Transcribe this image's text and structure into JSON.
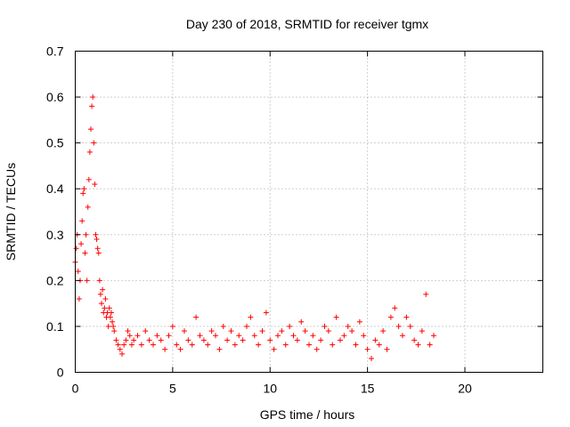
{
  "chart_data": {
    "type": "scatter",
    "title": "Day 230 of 2018, SRMTID for receiver tgmx",
    "xlabel": "GPS time / hours",
    "ylabel": "SRMTID / TECUs",
    "xlim": [
      0,
      24
    ],
    "ylim": [
      0,
      0.7
    ],
    "xticks": [
      0,
      5,
      10,
      15,
      20
    ],
    "yticks": [
      0,
      0.1,
      0.2,
      0.3,
      0.4,
      0.5,
      0.6,
      0.7
    ],
    "xtick_labels": [
      "0",
      "5",
      "10",
      "15",
      "20"
    ],
    "ytick_labels": [
      "0",
      "0.1",
      "0.2",
      "0.3",
      "0.4",
      "0.5",
      "0.6",
      "0.7"
    ],
    "grid": true,
    "marker": "+",
    "color": "#ff0000",
    "series": [
      {
        "name": "SRMTID",
        "x": [
          0.0,
          0.05,
          0.1,
          0.15,
          0.2,
          0.25,
          0.3,
          0.35,
          0.4,
          0.45,
          0.5,
          0.55,
          0.6,
          0.65,
          0.7,
          0.75,
          0.8,
          0.85,
          0.9,
          0.95,
          1.0,
          1.05,
          1.1,
          1.15,
          1.2,
          1.25,
          1.3,
          1.35,
          1.4,
          1.45,
          1.5,
          1.55,
          1.6,
          1.65,
          1.7,
          1.75,
          1.8,
          1.85,
          1.9,
          1.95,
          2.0,
          2.1,
          2.2,
          2.3,
          2.4,
          2.5,
          2.6,
          2.7,
          2.8,
          2.9,
          3.0,
          3.2,
          3.4,
          3.6,
          3.8,
          4.0,
          4.2,
          4.4,
          4.6,
          4.8,
          5.0,
          5.2,
          5.4,
          5.6,
          5.8,
          6.0,
          6.2,
          6.4,
          6.6,
          6.8,
          7.0,
          7.2,
          7.4,
          7.6,
          7.8,
          8.0,
          8.2,
          8.4,
          8.6,
          8.8,
          9.0,
          9.2,
          9.4,
          9.6,
          9.8,
          10.0,
          10.2,
          10.4,
          10.6,
          10.8,
          11.0,
          11.2,
          11.4,
          11.6,
          11.8,
          12.0,
          12.2,
          12.4,
          12.6,
          12.8,
          13.0,
          13.2,
          13.4,
          13.6,
          13.8,
          14.0,
          14.2,
          14.4,
          14.6,
          14.8,
          15.0,
          15.2,
          15.4,
          15.6,
          15.8,
          16.0,
          16.2,
          16.4,
          16.6,
          16.8,
          17.0,
          17.2,
          17.4,
          17.6,
          17.8,
          18.0,
          18.2,
          18.4
        ],
        "y": [
          0.24,
          0.27,
          0.3,
          0.22,
          0.16,
          0.2,
          0.28,
          0.33,
          0.39,
          0.4,
          0.26,
          0.3,
          0.2,
          0.36,
          0.42,
          0.48,
          0.53,
          0.58,
          0.6,
          0.5,
          0.41,
          0.3,
          0.29,
          0.27,
          0.26,
          0.2,
          0.17,
          0.15,
          0.18,
          0.13,
          0.14,
          0.16,
          0.12,
          0.13,
          0.1,
          0.14,
          0.12,
          0.13,
          0.11,
          0.1,
          0.09,
          0.07,
          0.06,
          0.05,
          0.04,
          0.06,
          0.07,
          0.09,
          0.08,
          0.06,
          0.07,
          0.08,
          0.06,
          0.09,
          0.07,
          0.06,
          0.08,
          0.07,
          0.05,
          0.08,
          0.1,
          0.06,
          0.05,
          0.09,
          0.07,
          0.06,
          0.12,
          0.08,
          0.07,
          0.06,
          0.09,
          0.08,
          0.05,
          0.1,
          0.07,
          0.09,
          0.06,
          0.08,
          0.07,
          0.1,
          0.12,
          0.08,
          0.06,
          0.09,
          0.13,
          0.07,
          0.05,
          0.08,
          0.09,
          0.06,
          0.1,
          0.08,
          0.07,
          0.11,
          0.09,
          0.06,
          0.08,
          0.05,
          0.07,
          0.1,
          0.09,
          0.06,
          0.12,
          0.07,
          0.08,
          0.1,
          0.09,
          0.06,
          0.11,
          0.08,
          0.05,
          0.03,
          0.07,
          0.06,
          0.09,
          0.05,
          0.12,
          0.14,
          0.1,
          0.08,
          0.12,
          0.1,
          0.07,
          0.06,
          0.09,
          0.17,
          0.06,
          0.08
        ]
      }
    ]
  }
}
